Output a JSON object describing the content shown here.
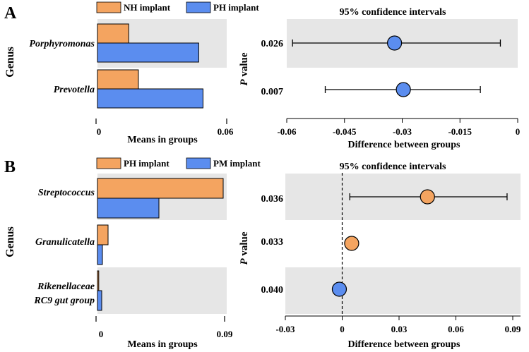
{
  "colors": {
    "orange": "#F4A460",
    "blue": "#5B8DEF",
    "band": "#E6E6E6",
    "stroke": "#000000"
  },
  "chart_data": [
    {
      "panel": "A",
      "type": "bar",
      "orientation": "horizontal",
      "legend": [
        "NH implant",
        "PH implant"
      ],
      "categories": [
        "Porphyromonas",
        "Prevotella"
      ],
      "series": [
        {
          "name": "NH implant",
          "values": [
            0.0145,
            0.019
          ]
        },
        {
          "name": "PH implant",
          "values": [
            0.047,
            0.049
          ]
        }
      ],
      "ylabel": "Genus",
      "xlabel": "Means in groups",
      "xlim": [
        0,
        0.06
      ],
      "xticks": [
        "0",
        "0.06"
      ]
    },
    {
      "panel": "A",
      "type": "scatter",
      "subtype": "confidence-interval",
      "title": "95% confidence intervals",
      "ylabel": "P value",
      "xlabel": "Difference between groups",
      "pvalues": [
        "0.026",
        "0.007"
      ],
      "estimates": [
        -0.032,
        -0.0297
      ],
      "ci_low": [
        -0.0585,
        -0.05
      ],
      "ci_high": [
        -0.0045,
        -0.0097
      ],
      "point_colors": [
        "blue",
        "blue"
      ],
      "xlim": [
        -0.06,
        0
      ],
      "xticks": [
        "-0.06",
        "-0.045",
        "-0.03",
        "-0.015",
        "0"
      ],
      "xtick_values": [
        -0.06,
        -0.045,
        -0.03,
        -0.015,
        0
      ]
    },
    {
      "panel": "B",
      "type": "bar",
      "orientation": "horizontal",
      "legend": [
        "PH implant",
        "PM implant"
      ],
      "categories": [
        "Streptococcus",
        "Granulicatella",
        "Rikenellaceae RC9 gut group"
      ],
      "category_lines": [
        [
          "Streptococcus"
        ],
        [
          "Granulicatella"
        ],
        [
          "Rikenellaceae",
          "RC9 gut group"
        ]
      ],
      "series": [
        {
          "name": "PH implant",
          "values": [
            0.089,
            0.0075,
            0.0009
          ]
        },
        {
          "name": "PM implant",
          "values": [
            0.0435,
            0.0035,
            0.003
          ]
        }
      ],
      "ylabel": "Genus",
      "xlabel": "Means in groups",
      "xlim": [
        0,
        0.09
      ],
      "xticks": [
        "0",
        "0.09"
      ]
    },
    {
      "panel": "B",
      "type": "scatter",
      "subtype": "confidence-interval",
      "title": "95% confidence intervals",
      "ylabel": "P value",
      "xlabel": "Difference between groups",
      "pvalues": [
        "0.036",
        "0.033",
        "0.040"
      ],
      "estimates": [
        0.045,
        0.005,
        -0.0015
      ],
      "ci_low": [
        0.004,
        0.004,
        -0.0025
      ],
      "ci_high": [
        0.087,
        0.006,
        0.0005
      ],
      "point_colors": [
        "orange",
        "orange",
        "blue"
      ],
      "xlim": [
        -0.03,
        0.09
      ],
      "xticks": [
        "-0.03",
        "0",
        "0.03",
        "0.06",
        "0.09"
      ],
      "xtick_values": [
        -0.03,
        0,
        0.03,
        0.06,
        0.09
      ],
      "reference_line": 0
    }
  ],
  "panel_labels": [
    "A",
    "B"
  ]
}
